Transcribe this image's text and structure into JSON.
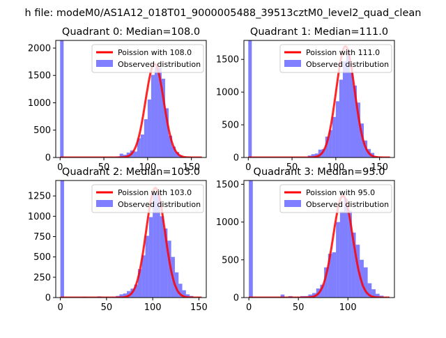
{
  "suptitle": "h file: modeM0/AS1A12_018T01_9000005488_39513cztM0_level2_quad_clean",
  "colors": {
    "histogram": "#0000ff",
    "histogram_opacity": 0.5,
    "poisson_line": "#ff0000",
    "axes": "#000000",
    "background": "#ffffff"
  },
  "legend_entries": {
    "observed": "Observed distribution"
  },
  "chart_data": [
    {
      "type": "bar",
      "title": "Quadrant 0: Median=108.0",
      "median": 108,
      "poisson_label": "Poission with 108.0",
      "poisson_peak": 1710,
      "xlim": [
        -5,
        167
      ],
      "ylim": [
        0,
        2140
      ],
      "xticks": [
        0,
        50,
        100,
        150
      ],
      "xtick_labels": [
        "0",
        "50",
        "100",
        "150"
      ],
      "yticks": [
        0,
        500,
        1000,
        1500,
        2000
      ],
      "ytick_labels": [
        "0",
        "500",
        "1000",
        "1500",
        "2000"
      ],
      "bin_width": 4,
      "bins": [
        [
          0,
          2140
        ],
        [
          56,
          10
        ],
        [
          64,
          20
        ],
        [
          68,
          70
        ],
        [
          72,
          50
        ],
        [
          76,
          90
        ],
        [
          80,
          130
        ],
        [
          84,
          110
        ],
        [
          88,
          350
        ],
        [
          92,
          420
        ],
        [
          96,
          700
        ],
        [
          100,
          1060
        ],
        [
          104,
          1510
        ],
        [
          108,
          1650
        ],
        [
          112,
          1640
        ],
        [
          116,
          1440
        ],
        [
          120,
          900
        ],
        [
          124,
          400
        ],
        [
          128,
          200
        ],
        [
          132,
          100
        ],
        [
          136,
          40
        ],
        [
          140,
          15
        ]
      ],
      "legend_loc": "upper right"
    },
    {
      "type": "bar",
      "title": "Quadrant 1: Median=111.0",
      "median": 111,
      "poisson_label": "Poission with 111.0",
      "poisson_peak": 1700,
      "xlim": [
        -5,
        167
      ],
      "ylim": [
        0,
        1790
      ],
      "xticks": [
        0,
        50,
        100,
        150
      ],
      "xtick_labels": [
        "0",
        "50",
        "100",
        "150"
      ],
      "yticks": [
        0,
        500,
        1000,
        1500
      ],
      "ytick_labels": [
        "0",
        "500",
        "1000",
        "1500"
      ],
      "bin_width": 4,
      "bins": [
        [
          0,
          1790
        ],
        [
          68,
          30
        ],
        [
          72,
          50
        ],
        [
          76,
          60
        ],
        [
          80,
          120
        ],
        [
          84,
          130
        ],
        [
          88,
          320
        ],
        [
          92,
          420
        ],
        [
          96,
          620
        ],
        [
          100,
          860
        ],
        [
          104,
          1190
        ],
        [
          108,
          1470
        ],
        [
          112,
          1640
        ],
        [
          116,
          1300
        ],
        [
          120,
          1100
        ],
        [
          124,
          840
        ],
        [
          128,
          520
        ],
        [
          132,
          260
        ],
        [
          136,
          130
        ],
        [
          140,
          70
        ],
        [
          144,
          20
        ]
      ],
      "legend_loc": "upper right"
    },
    {
      "type": "bar",
      "title": "Quadrant 2: Median=103.0",
      "median": 103,
      "poisson_label": "Poission with 103.0",
      "poisson_peak": 1350,
      "xlim": [
        -5,
        158
      ],
      "ylim": [
        0,
        1440
      ],
      "xticks": [
        0,
        50,
        100,
        150
      ],
      "xtick_labels": [
        "0",
        "50",
        "100",
        "150"
      ],
      "yticks": [
        0,
        250,
        500,
        750,
        1000,
        1250
      ],
      "ytick_labels": [
        "0",
        "250",
        "500",
        "750",
        "1000",
        "1250"
      ],
      "bin_width": 4,
      "bins": [
        [
          0,
          1440
        ],
        [
          24,
          10
        ],
        [
          40,
          15
        ],
        [
          60,
          20
        ],
        [
          64,
          40
        ],
        [
          68,
          50
        ],
        [
          72,
          80
        ],
        [
          76,
          110
        ],
        [
          80,
          160
        ],
        [
          84,
          350
        ],
        [
          88,
          520
        ],
        [
          92,
          760
        ],
        [
          96,
          990
        ],
        [
          100,
          1270
        ],
        [
          104,
          1280
        ],
        [
          108,
          1000
        ],
        [
          112,
          850
        ],
        [
          116,
          700
        ],
        [
          120,
          500
        ],
        [
          124,
          310
        ],
        [
          128,
          170
        ],
        [
          132,
          90
        ],
        [
          136,
          40
        ],
        [
          140,
          20
        ]
      ],
      "legend_loc": "upper right"
    },
    {
      "type": "bar",
      "title": "Quadrant 3: Median=95.0",
      "median": 95,
      "poisson_label": "Poission with 95.0",
      "poisson_peak": 1350,
      "xlim": [
        -5,
        147
      ],
      "ylim": [
        0,
        1550
      ],
      "xticks": [
        0,
        50,
        100
      ],
      "xtick_labels": [
        "0",
        "50",
        "100"
      ],
      "yticks": [
        0,
        500,
        1000,
        1500
      ],
      "ytick_labels": [
        "0",
        "500",
        "1000",
        "1500"
      ],
      "bin_width": 4,
      "bins": [
        [
          0,
          1550
        ],
        [
          32,
          40
        ],
        [
          40,
          20
        ],
        [
          52,
          20
        ],
        [
          56,
          20
        ],
        [
          60,
          40
        ],
        [
          64,
          60
        ],
        [
          68,
          120
        ],
        [
          72,
          170
        ],
        [
          76,
          400
        ],
        [
          80,
          580
        ],
        [
          84,
          600
        ],
        [
          88,
          1000
        ],
        [
          92,
          1140
        ],
        [
          96,
          1310
        ],
        [
          100,
          1150
        ],
        [
          104,
          860
        ],
        [
          108,
          700
        ],
        [
          112,
          500
        ],
        [
          116,
          400
        ],
        [
          120,
          190
        ],
        [
          124,
          110
        ],
        [
          128,
          50
        ],
        [
          132,
          25
        ]
      ],
      "legend_loc": "upper right"
    }
  ]
}
